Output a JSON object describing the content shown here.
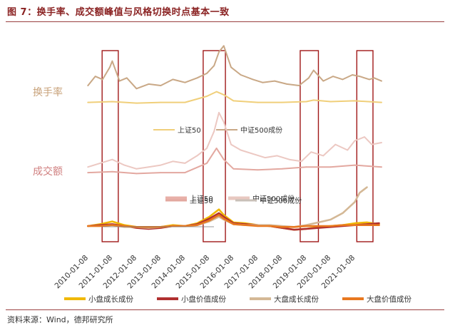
{
  "figure_title": "图 7：换手率、成交额峰值与风格切换时点基本一致",
  "source": "资料来源：Wind，德邦研究所",
  "chart_data": {
    "type": "line",
    "x_ticks": [
      "2010-01-08",
      "2011-01-08",
      "2012-01-08",
      "2013-01-08",
      "2014-01-08",
      "2015-01-08",
      "2016-01-08",
      "2017-01-08",
      "2018-01-08",
      "2019-01-08",
      "2020-01-08",
      "2021-01-08"
    ],
    "xlim": [
      "2010-01-08",
      "2022-04-01"
    ],
    "panels": [
      {
        "label": "换手率",
        "label_color": "#c8a27a",
        "legend": [
          {
            "name": "上证50",
            "color": "#f0cf7a"
          },
          {
            "name": "中证500成份",
            "color": "#c9a886"
          }
        ],
        "series": [
          {
            "name": "中证500成份",
            "color": "#c9a886",
            "x": [
              2010.0,
              2010.3,
              2010.6,
              2010.9,
              2011.0,
              2011.3,
              2011.6,
              2012.0,
              2012.5,
              2013.0,
              2013.5,
              2014.0,
              2014.5,
              2014.9,
              2015.2,
              2015.4,
              2015.6,
              2015.9,
              2016.3,
              2016.8,
              2017.2,
              2017.7,
              2018.2,
              2018.7,
              2019.1,
              2019.3,
              2019.7,
              2020.1,
              2020.5,
              2020.9,
              2021.2,
              2021.6,
              2021.8,
              2022.1
            ],
            "y": [
              1.4,
              2.0,
              1.8,
              2.6,
              3.0,
              1.7,
              1.9,
              1.2,
              1.5,
              1.4,
              1.8,
              1.6,
              1.9,
              2.2,
              2.7,
              3.6,
              4.0,
              2.6,
              2.1,
              1.8,
              1.6,
              1.7,
              1.5,
              1.4,
              1.9,
              2.4,
              1.7,
              2.0,
              1.8,
              2.1,
              2.0,
              1.8,
              1.9,
              1.7
            ]
          },
          {
            "name": "上证50",
            "color": "#f0cf7a",
            "x": [
              2010.0,
              2011.0,
              2012.0,
              2013.0,
              2014.0,
              2014.9,
              2015.3,
              2015.6,
              2016.0,
              2017.0,
              2018.0,
              2019.0,
              2019.3,
              2020.0,
              2021.0,
              2022.1
            ],
            "y": [
              0.3,
              0.35,
              0.25,
              0.3,
              0.3,
              0.7,
              1.0,
              0.8,
              0.4,
              0.3,
              0.3,
              0.35,
              0.45,
              0.35,
              0.4,
              0.3
            ]
          }
        ]
      },
      {
        "label": "成交额",
        "label_color": "#d08080",
        "legend": [
          {
            "name": "上证50",
            "color": "#e8b0a8"
          },
          {
            "name": "中证500成份",
            "color": "#e8c8c0"
          }
        ],
        "series": [
          {
            "name": "中证500成份",
            "color": "#ecc8c2",
            "x": [
              2010.0,
              2010.5,
              2011.0,
              2011.5,
              2012.0,
              2012.5,
              2013.0,
              2013.5,
              2014.0,
              2014.5,
              2014.9,
              2015.2,
              2015.4,
              2015.6,
              2015.9,
              2016.3,
              2016.8,
              2017.3,
              2017.8,
              2018.3,
              2018.8,
              2019.2,
              2019.7,
              2020.2,
              2020.7,
              2021.0,
              2021.4,
              2021.7,
              2022.1
            ],
            "y": [
              0.6,
              0.8,
              1.0,
              0.7,
              0.5,
              0.6,
              0.7,
              0.9,
              0.8,
              1.2,
              1.6,
              2.5,
              3.5,
              3.0,
              1.8,
              1.5,
              1.3,
              1.1,
              1.2,
              1.0,
              0.9,
              1.4,
              1.2,
              1.8,
              1.5,
              2.0,
              2.2,
              1.8,
              1.9
            ]
          },
          {
            "name": "上证50",
            "color": "#e3a8a0",
            "x": [
              2010.0,
              2011.0,
              2012.0,
              2013.0,
              2014.0,
              2014.9,
              2015.3,
              2015.6,
              2016.0,
              2017.0,
              2018.0,
              2019.0,
              2020.0,
              2021.0,
              2022.1
            ],
            "y": [
              0.3,
              0.35,
              0.25,
              0.3,
              0.3,
              0.8,
              1.6,
              1.0,
              0.5,
              0.45,
              0.5,
              0.6,
              0.6,
              0.7,
              0.6
            ]
          }
        ]
      },
      {
        "label": "",
        "legend": [
          {
            "name": "上证50",
            "color": "#e3a8a0"
          },
          {
            "name": "中证500成份",
            "color": "#c9c0b8"
          }
        ],
        "series": [
          {
            "name": "小盘成长成份",
            "color": "#f0b800",
            "x": [
              2010.0,
              2010.5,
              2011.0,
              2011.5,
              2012.0,
              2012.5,
              2013.0,
              2013.5,
              2014.0,
              2014.5,
              2015.0,
              2015.4,
              2015.6,
              2016.0,
              2016.5,
              2017.0,
              2017.5,
              2018.0,
              2018.5,
              2019.0,
              2019.5,
              2020.0,
              2020.5,
              2021.0,
              2021.5,
              2022.0
            ],
            "y": [
              1.0,
              1.2,
              1.5,
              1.1,
              0.9,
              0.8,
              0.9,
              1.1,
              1.0,
              1.3,
              2.0,
              2.8,
              2.2,
              1.4,
              1.3,
              1.1,
              1.0,
              0.8,
              0.6,
              0.7,
              0.9,
              1.0,
              1.1,
              1.3,
              1.4,
              1.2
            ]
          },
          {
            "name": "小盘价值成份",
            "color": "#b03030",
            "x": [
              2010.0,
              2010.5,
              2011.0,
              2011.5,
              2012.0,
              2012.5,
              2013.0,
              2013.5,
              2014.0,
              2014.5,
              2015.0,
              2015.4,
              2015.6,
              2016.0,
              2016.5,
              2017.0,
              2017.5,
              2018.0,
              2018.5,
              2019.0,
              2019.5,
              2020.0,
              2020.5,
              2021.0,
              2021.5,
              2022.0
            ],
            "y": [
              1.0,
              1.1,
              1.2,
              1.0,
              0.8,
              0.7,
              0.8,
              1.0,
              1.0,
              1.2,
              1.8,
              2.4,
              2.0,
              1.3,
              1.2,
              1.1,
              1.0,
              0.8,
              0.6,
              0.7,
              0.8,
              0.9,
              1.0,
              1.1,
              1.2,
              1.3
            ]
          },
          {
            "name": "大盘成长成份",
            "color": "#d4b896",
            "x": [
              2010.0,
              2010.5,
              2011.0,
              2011.5,
              2012.0,
              2012.5,
              2013.0,
              2013.5,
              2014.0,
              2014.5,
              2015.0,
              2015.4,
              2015.6,
              2016.0,
              2016.5,
              2017.0,
              2017.5,
              2018.0,
              2018.5,
              2019.0,
              2019.5,
              2020.0,
              2020.5,
              2021.0,
              2021.2,
              2021.5
            ],
            "y": [
              1.0,
              1.0,
              1.1,
              0.9,
              0.9,
              0.8,
              0.9,
              1.0,
              1.0,
              1.1,
              1.5,
              2.0,
              1.7,
              1.2,
              1.1,
              1.1,
              1.1,
              1.0,
              0.9,
              1.1,
              1.4,
              1.7,
              2.4,
              3.6,
              4.6,
              5.2
            ]
          },
          {
            "name": "大盘价值成份",
            "color": "#e87820",
            "x": [
              2010.0,
              2010.5,
              2011.0,
              2011.5,
              2012.0,
              2012.5,
              2013.0,
              2013.5,
              2014.0,
              2014.5,
              2015.0,
              2015.4,
              2015.6,
              2016.0,
              2016.5,
              2017.0,
              2017.5,
              2018.0,
              2018.5,
              2019.0,
              2019.5,
              2020.0,
              2020.5,
              2021.0,
              2021.5,
              2022.0
            ],
            "y": [
              1.0,
              1.0,
              1.1,
              1.0,
              0.9,
              0.9,
              0.9,
              1.0,
              1.0,
              1.1,
              1.6,
              2.2,
              1.8,
              1.2,
              1.1,
              1.0,
              1.0,
              0.9,
              0.9,
              1.0,
              1.0,
              1.0,
              1.1,
              1.1,
              1.1,
              1.1
            ]
          }
        ]
      }
    ],
    "highlight_windows": [
      [
        "2010-08",
        "2011-04"
      ],
      [
        "2014-10",
        "2015-09"
      ],
      [
        "2018-10",
        "2019-07"
      ],
      [
        "2021-02",
        "2021-10"
      ]
    ],
    "legend": [
      {
        "name": "小盘成长成份",
        "color": "#f0b800"
      },
      {
        "name": "小盘价值成份",
        "color": "#b03030"
      },
      {
        "name": "大盘成长成份",
        "color": "#d4b896"
      },
      {
        "name": "大盘价值成份",
        "color": "#e87820"
      }
    ],
    "legend_position": "bottom"
  }
}
